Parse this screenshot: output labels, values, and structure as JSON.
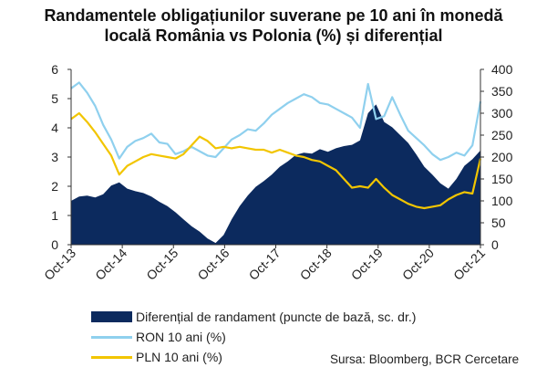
{
  "title": {
    "line1": "Randamentele obligațiunilor suverane pe 10 ani în monedă",
    "line2": "locală România vs Polonia (%) și diferențial"
  },
  "source": "Sursa: Bloomberg, BCR Cercetare",
  "chart_data": {
    "type": "line",
    "x_ticks": [
      "Oct-13",
      "Oct-14",
      "Oct-15",
      "Oct-16",
      "Oct-17",
      "Oct-18",
      "Oct-19",
      "Oct-20",
      "Oct-21"
    ],
    "y_left": {
      "ticks": [
        "0",
        "1",
        "2",
        "3",
        "4",
        "5",
        "6"
      ],
      "ylim": [
        0,
        6
      ]
    },
    "y_right": {
      "ticks": [
        "0",
        "50",
        "100",
        "150",
        "200",
        "250",
        "300",
        "350",
        "400"
      ],
      "ylim": [
        0,
        400
      ]
    },
    "x": [
      "Oct-13",
      "Dec-13",
      "Feb-14",
      "Apr-14",
      "Jun-14",
      "Aug-14",
      "Oct-14",
      "Dec-14",
      "Feb-15",
      "Apr-15",
      "Jun-15",
      "Aug-15",
      "Oct-15",
      "Dec-15",
      "Feb-16",
      "Apr-16",
      "Jun-16",
      "Aug-16",
      "Oct-16",
      "Dec-16",
      "Feb-17",
      "Apr-17",
      "Jun-17",
      "Aug-17",
      "Oct-17",
      "Dec-17",
      "Feb-18",
      "Apr-18",
      "Jun-18",
      "Aug-18",
      "Oct-18",
      "Dec-18",
      "Feb-19",
      "Apr-19",
      "Jun-19",
      "Aug-19",
      "Oct-19",
      "Nov-19",
      "Dec-19",
      "Feb-20",
      "Mar-20",
      "Apr-20",
      "Jun-20",
      "Aug-20",
      "Oct-20",
      "Dec-20",
      "Feb-21",
      "Apr-21",
      "Jun-21",
      "Aug-21",
      "Sep-21",
      "Oct-21"
    ],
    "series": [
      {
        "name": "Diferențial de randament (puncte de bază, sc. dr.)",
        "type": "area",
        "axis": "right",
        "color": "#0c2a5e",
        "values": [
          100,
          110,
          112,
          108,
          115,
          135,
          142,
          128,
          122,
          118,
          110,
          98,
          88,
          74,
          58,
          42,
          30,
          14,
          4,
          22,
          58,
          88,
          112,
          132,
          145,
          160,
          178,
          190,
          205,
          210,
          208,
          218,
          212,
          220,
          225,
          228,
          238,
          300,
          320,
          280,
          268,
          250,
          232,
          206,
          178,
          160,
          140,
          128,
          150,
          180,
          195,
          215
        ]
      },
      {
        "name": "RON 10 ani (%)",
        "type": "line",
        "axis": "left",
        "color": "#8fd0ee",
        "values": [
          5.35,
          5.55,
          5.2,
          4.75,
          4.1,
          3.6,
          2.95,
          3.35,
          3.55,
          3.65,
          3.8,
          3.5,
          3.45,
          3.1,
          3.2,
          3.35,
          3.2,
          3.05,
          3.0,
          3.3,
          3.6,
          3.75,
          3.95,
          3.9,
          4.15,
          4.45,
          4.65,
          4.85,
          5.0,
          5.15,
          5.05,
          4.85,
          4.8,
          4.65,
          4.5,
          4.35,
          4.0,
          5.5,
          4.3,
          4.4,
          5.05,
          4.45,
          3.9,
          3.65,
          3.4,
          3.1,
          2.9,
          3.0,
          3.15,
          3.05,
          3.4,
          4.9
        ]
      },
      {
        "name": "PLN 10 ani (%)",
        "type": "line",
        "axis": "left",
        "color": "#f2c500",
        "values": [
          4.3,
          4.5,
          4.2,
          3.85,
          3.45,
          3.05,
          2.4,
          2.7,
          2.85,
          3.0,
          3.1,
          3.05,
          3.0,
          2.95,
          3.1,
          3.4,
          3.7,
          3.55,
          3.3,
          3.35,
          3.3,
          3.35,
          3.3,
          3.25,
          3.25,
          3.15,
          3.25,
          3.15,
          3.05,
          3.0,
          2.9,
          2.85,
          2.7,
          2.55,
          2.25,
          1.95,
          2.0,
          1.95,
          2.25,
          1.95,
          1.7,
          1.55,
          1.4,
          1.3,
          1.25,
          1.3,
          1.35,
          1.55,
          1.7,
          1.8,
          1.75,
          2.95
        ]
      }
    ],
    "legend": "bottom"
  }
}
